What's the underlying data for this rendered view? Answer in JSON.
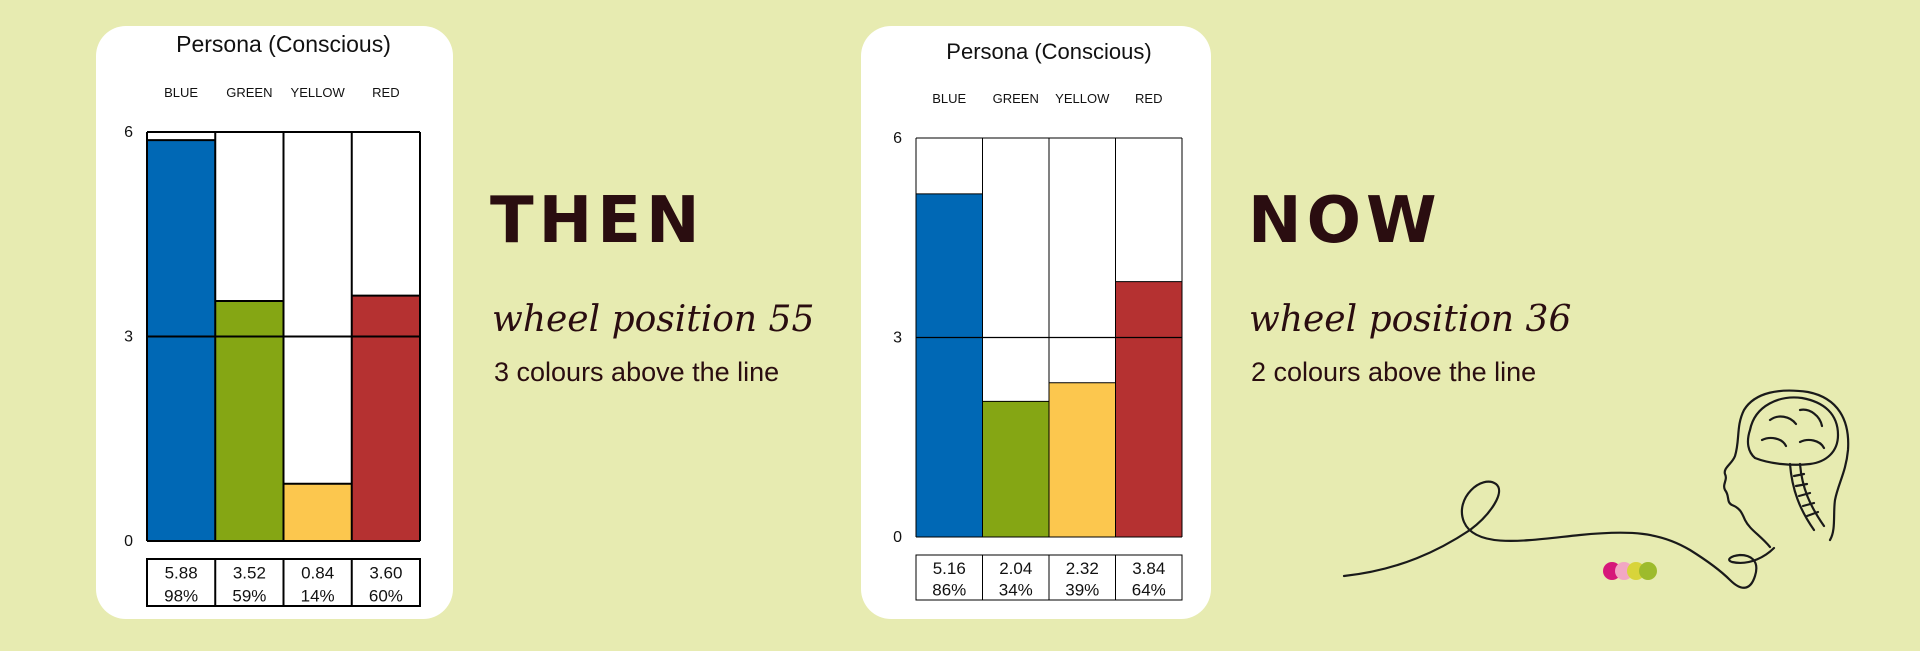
{
  "colors": {
    "background": "#e7ebb1",
    "card": "#ffffff",
    "heading_text": "#2a0d10",
    "blue": "#0068b5",
    "green": "#85a614",
    "yellow": "#fcc74e",
    "red": "#b53131"
  },
  "then": {
    "heading": "THEN",
    "subheading": "wheel position 55",
    "description": "3 colours above the line"
  },
  "now": {
    "heading": "NOW",
    "subheading": "wheel position 36",
    "description": "2 colours above the line"
  },
  "chart_data": [
    {
      "type": "bar",
      "title": "Persona (Conscious)",
      "categories": [
        "BLUE",
        "GREEN",
        "YELLOW",
        "RED"
      ],
      "values": [
        5.88,
        3.52,
        0.84,
        3.6
      ],
      "value_labels": [
        "5.88",
        "3.52",
        "0.84",
        "3.60"
      ],
      "percent_labels": [
        "98%",
        "59%",
        "14%",
        "60%"
      ],
      "colors": [
        "#0068b5",
        "#85a614",
        "#fcc74e",
        "#b53131"
      ],
      "ylim": [
        0,
        6
      ],
      "yticks": [
        "0",
        "3",
        "6"
      ],
      "midline": 3
    },
    {
      "type": "bar",
      "title": "Persona (Conscious)",
      "categories": [
        "BLUE",
        "GREEN",
        "YELLOW",
        "RED"
      ],
      "values": [
        5.16,
        2.04,
        2.32,
        3.84
      ],
      "value_labels": [
        "5.16",
        "2.04",
        "2.32",
        "3.84"
      ],
      "percent_labels": [
        "86%",
        "34%",
        "39%",
        "64%"
      ],
      "colors": [
        "#0068b5",
        "#85a614",
        "#fcc74e",
        "#b53131"
      ],
      "ylim": [
        0,
        6
      ],
      "yticks": [
        "0",
        "3",
        "6"
      ],
      "midline": 3
    }
  ]
}
